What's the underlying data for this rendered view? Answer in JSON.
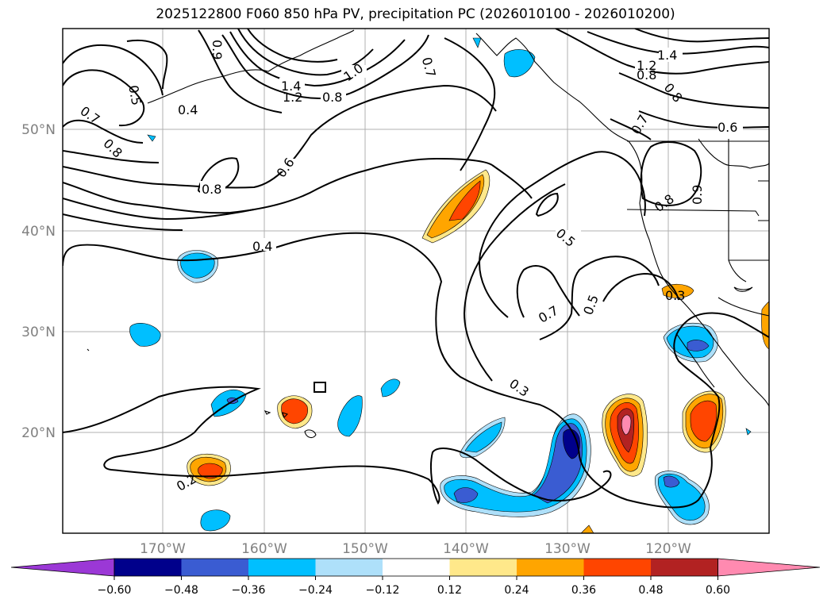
{
  "title": "2025122800 F060 850 hPa PV, precipitation PC (2026010100 - 2026010200)",
  "gridlabels": {
    "lon": [
      "170°W",
      "160°W",
      "150°W",
      "140°W",
      "130°W",
      "120°W"
    ],
    "lat": [
      "50°N",
      "40°N",
      "30°N",
      "20°N"
    ]
  },
  "contour_labels": [
    "1.4",
    "1.2",
    "1.0",
    "0.8",
    "0.7",
    "0.6",
    "0.5",
    "0.4",
    "0.3",
    "0.2",
    "0.9"
  ],
  "colorbar": {
    "ticks": [
      "−0.60",
      "−0.48",
      "−0.36",
      "−0.24",
      "−0.12",
      "0.12",
      "0.24",
      "0.36",
      "0.48",
      "0.60"
    ],
    "colors": [
      "#9b38d6",
      "#00008b",
      "#3a5cd2",
      "#00bfff",
      "#aee0fa",
      "#ffffff",
      "#ffe88a",
      "#ffa500",
      "#ff4500",
      "#b22222",
      "#ff8ab0"
    ]
  }
}
